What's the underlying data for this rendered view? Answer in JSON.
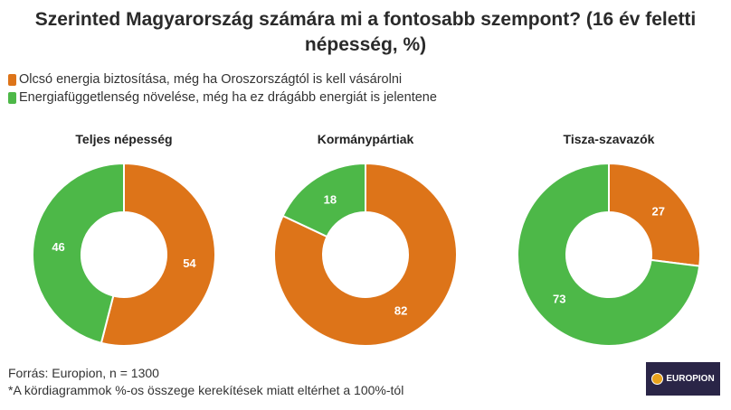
{
  "chart_data": {
    "type": "pie",
    "title": "Szerinted Magyarország számára mi a fontosabb szempont? (16 év feletti népesség, %)",
    "legend": [
      {
        "label": "Olcsó energia biztosítása, még ha Oroszországtól is kell vásárolni",
        "color": "#DD7419"
      },
      {
        "label": "Energiafüggetlenség növelése, még ha ez drágább energiát is jelentene",
        "color": "#4DB848"
      }
    ],
    "charts": [
      {
        "title": "Teljes népesség",
        "values": [
          54,
          46
        ]
      },
      {
        "title": "Kormánypártiak",
        "values": [
          82,
          18
        ]
      },
      {
        "title": "Tisza-szavazók",
        "values": [
          27,
          73
        ]
      }
    ]
  },
  "footer": {
    "source": "Forrás: Europion, n = 1300",
    "note": "*A kördiagrammok %-os összege kerekítések miatt eltérhet a 100%-tól"
  },
  "logo": {
    "text": "EUROPION"
  }
}
